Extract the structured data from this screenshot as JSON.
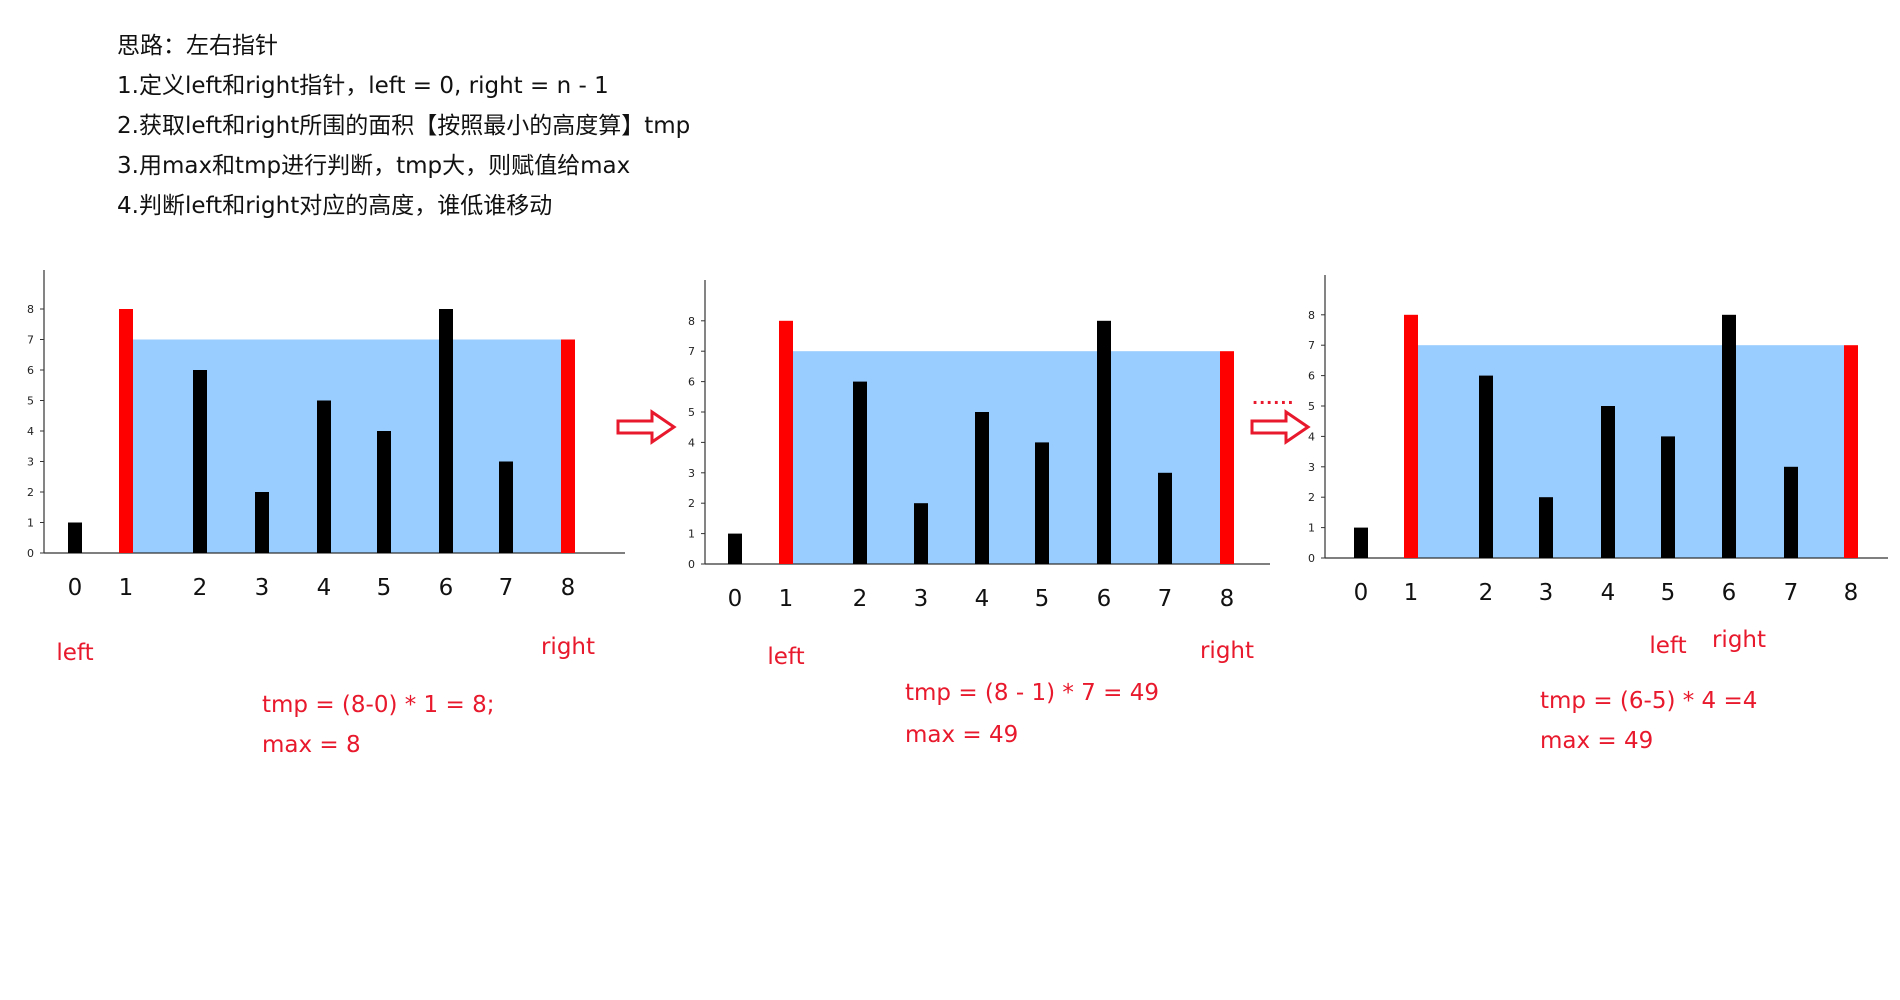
{
  "notes": {
    "title": "思路：左右指针",
    "steps": [
      "1.定义left和right指针，left = 0, right = n - 1",
      "2.获取left和right所围的面积【按照最小的高度算】tmp",
      "3.用max和tmp进行判断，tmp大，则赋值给max",
      "4.判断left和right对应的高度，谁低谁移动"
    ]
  },
  "colors": {
    "bar": "#000000",
    "pointer_bar": "#ff0000",
    "water": "#99ccff",
    "annotation": "#e8192c",
    "arrow": "#e8192c",
    "axis": "#333333"
  },
  "arrows": {
    "ellipsis": "......"
  },
  "chart_data": [
    {
      "type": "bar",
      "categories": [
        "0",
        "1",
        "2",
        "3",
        "4",
        "5",
        "6",
        "7",
        "8"
      ],
      "values": [
        1,
        8,
        6,
        2,
        5,
        4,
        8,
        3,
        7
      ],
      "highlighted": [
        1,
        8
      ],
      "water": {
        "from": 1,
        "to": 8,
        "level": 7
      },
      "yticks": [
        0,
        1,
        2,
        3,
        4,
        5,
        6,
        7,
        8
      ],
      "ylim": [
        0,
        9
      ],
      "left_label": "left",
      "right_label": "right",
      "left_index": 0,
      "right_index": 8,
      "formula": "tmp = (8-0) * 1 = 8;",
      "max_text": "max = 8"
    },
    {
      "type": "bar",
      "categories": [
        "0",
        "1",
        "2",
        "3",
        "4",
        "5",
        "6",
        "7",
        "8"
      ],
      "values": [
        1,
        8,
        6,
        2,
        5,
        4,
        8,
        3,
        7
      ],
      "highlighted": [
        1,
        8
      ],
      "water": {
        "from": 1,
        "to": 8,
        "level": 7
      },
      "yticks": [
        0,
        1,
        2,
        3,
        4,
        5,
        6,
        7,
        8
      ],
      "ylim": [
        0,
        9
      ],
      "left_label": "left",
      "right_label": "right",
      "left_index": 1,
      "right_index": 8,
      "formula": "tmp = (8 - 1) * 7 = 49",
      "max_text": "max = 49"
    },
    {
      "type": "bar",
      "categories": [
        "0",
        "1",
        "2",
        "3",
        "4",
        "5",
        "6",
        "7",
        "8"
      ],
      "values": [
        1,
        8,
        6,
        2,
        5,
        4,
        8,
        3,
        7
      ],
      "highlighted": [
        1,
        8
      ],
      "water": {
        "from": 1,
        "to": 8,
        "level": 7
      },
      "yticks": [
        0,
        1,
        2,
        3,
        4,
        5,
        6,
        7,
        8
      ],
      "ylim": [
        0,
        9
      ],
      "left_label": "left",
      "right_label": "right",
      "left_index": 5,
      "right_index": 6,
      "formula": "tmp = (6-5) * 4 =4",
      "max_text": "max = 49"
    }
  ]
}
